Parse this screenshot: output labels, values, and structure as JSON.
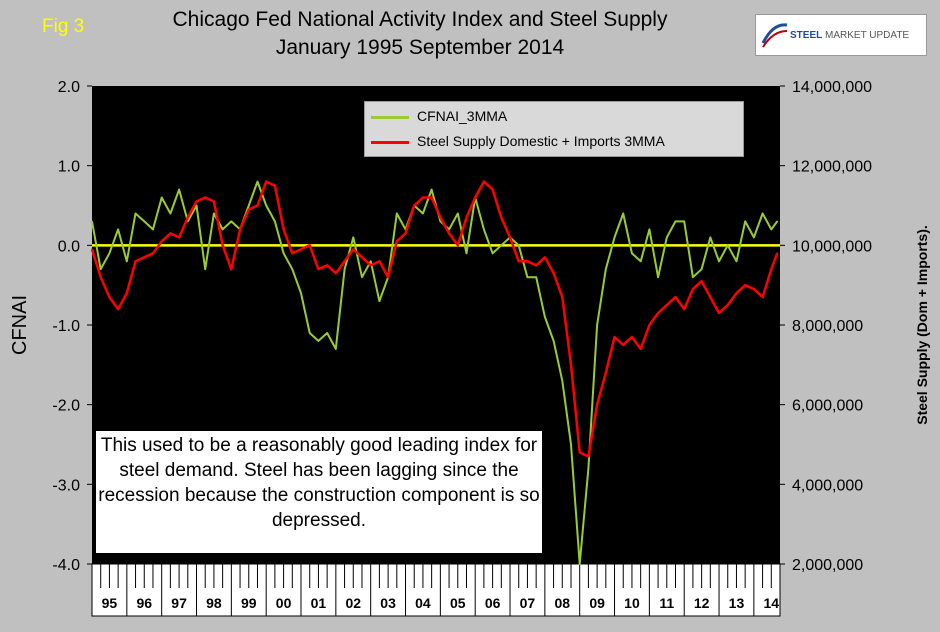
{
  "header": {
    "fig_label": "Fig 3",
    "title_line1": "Chicago Fed National Activity Index and Steel Supply",
    "title_line2": "January 1995 September 2014",
    "logo_brand": "STEEL",
    "logo_rest": " MARKET UPDATE"
  },
  "note": "This used to be a reasonably good leading index for steel demand. Steel has been lagging since the recession because the construction component is so depressed.",
  "colors": {
    "plot_bg": "#000000",
    "cfnai": "#99cc33",
    "steel": "#ff0000",
    "zero_line": "#ffff00"
  },
  "chart_data": {
    "type": "line",
    "title": "Chicago Fed National Activity Index and Steel Supply January 1995 September 2014",
    "ylabel": "CFNAI",
    "y2label": "Steel Supply (Dom + Imports).",
    "ylim": [
      -4.0,
      2.0
    ],
    "y2lim": [
      2000000,
      14000000
    ],
    "yticks": [
      "2.0",
      "1.0",
      "0.0",
      "-1.0",
      "-2.0",
      "-3.0",
      "-4.0"
    ],
    "yticks_values": [
      2.0,
      1.0,
      0.0,
      -1.0,
      -2.0,
      -3.0,
      -4.0
    ],
    "y2ticks": [
      "14,000,000",
      "12,000,000",
      "10,000,000",
      "8,000,000",
      "6,000,000",
      "4,000,000",
      "2,000,000"
    ],
    "y2ticks_values": [
      14000000,
      12000000,
      10000000,
      8000000,
      6000000,
      4000000,
      2000000
    ],
    "xticks": [
      "95",
      "96",
      "97",
      "98",
      "99",
      "00",
      "01",
      "02",
      "03",
      "04",
      "05",
      "06",
      "07",
      "08",
      "09",
      "10",
      "11",
      "12",
      "13",
      "14"
    ],
    "xlim": [
      1995.0,
      2014.75
    ],
    "grid": false,
    "legend_position": "top-center",
    "reference_line": 0.0,
    "series": [
      {
        "name": "CFNAI_3MMA",
        "axis": "left",
        "x": [
          1995.0,
          1995.25,
          1995.5,
          1995.75,
          1996.0,
          1996.25,
          1996.5,
          1996.75,
          1997.0,
          1997.25,
          1997.5,
          1997.75,
          1998.0,
          1998.25,
          1998.5,
          1998.75,
          1999.0,
          1999.25,
          1999.5,
          1999.75,
          2000.0,
          2000.25,
          2000.5,
          2000.75,
          2001.0,
          2001.25,
          2001.5,
          2001.75,
          2002.0,
          2002.25,
          2002.5,
          2002.75,
          2003.0,
          2003.25,
          2003.5,
          2003.75,
          2004.0,
          2004.25,
          2004.5,
          2004.75,
          2005.0,
          2005.25,
          2005.5,
          2005.75,
          2006.0,
          2006.25,
          2006.5,
          2006.75,
          2007.0,
          2007.25,
          2007.5,
          2007.75,
          2008.0,
          2008.25,
          2008.5,
          2008.75,
          2009.0,
          2009.25,
          2009.5,
          2009.75,
          2010.0,
          2010.25,
          2010.5,
          2010.75,
          2011.0,
          2011.25,
          2011.5,
          2011.75,
          2012.0,
          2012.25,
          2012.5,
          2012.75,
          2013.0,
          2013.25,
          2013.5,
          2013.75,
          2014.0,
          2014.25,
          2014.5,
          2014.67
        ],
        "values": [
          0.3,
          -0.3,
          -0.1,
          0.2,
          -0.2,
          0.4,
          0.3,
          0.2,
          0.6,
          0.4,
          0.7,
          0.3,
          0.5,
          -0.3,
          0.4,
          0.2,
          0.3,
          0.2,
          0.5,
          0.8,
          0.5,
          0.3,
          -0.1,
          -0.3,
          -0.6,
          -1.1,
          -1.2,
          -1.1,
          -1.3,
          -0.3,
          0.1,
          -0.4,
          -0.2,
          -0.7,
          -0.4,
          0.4,
          0.2,
          0.5,
          0.4,
          0.7,
          0.3,
          0.2,
          0.4,
          -0.1,
          0.6,
          0.2,
          -0.1,
          0.0,
          0.1,
          0.0,
          -0.4,
          -0.4,
          -0.9,
          -1.2,
          -1.7,
          -2.5,
          -4.0,
          -2.8,
          -1.0,
          -0.3,
          0.1,
          0.4,
          -0.1,
          -0.2,
          0.2,
          -0.4,
          0.1,
          0.3,
          0.3,
          -0.4,
          -0.3,
          0.1,
          -0.2,
          0.0,
          -0.2,
          0.3,
          0.1,
          0.4,
          0.2,
          0.3
        ]
      },
      {
        "name": "Steel Supply Domestic + Imports 3MMA",
        "axis": "right",
        "x": [
          1995.0,
          1995.25,
          1995.5,
          1995.75,
          1996.0,
          1996.25,
          1996.5,
          1996.75,
          1997.0,
          1997.25,
          1997.5,
          1997.75,
          1998.0,
          1998.25,
          1998.5,
          1998.75,
          1999.0,
          1999.25,
          1999.5,
          1999.75,
          2000.0,
          2000.25,
          2000.5,
          2000.75,
          2001.0,
          2001.25,
          2001.5,
          2001.75,
          2002.0,
          2002.25,
          2002.5,
          2002.75,
          2003.0,
          2003.25,
          2003.5,
          2003.75,
          2004.0,
          2004.25,
          2004.5,
          2004.75,
          2005.0,
          2005.25,
          2005.5,
          2005.75,
          2006.0,
          2006.25,
          2006.5,
          2006.75,
          2007.0,
          2007.25,
          2007.5,
          2007.75,
          2008.0,
          2008.25,
          2008.5,
          2008.75,
          2009.0,
          2009.25,
          2009.5,
          2009.75,
          2010.0,
          2010.25,
          2010.5,
          2010.75,
          2011.0,
          2011.25,
          2011.5,
          2011.75,
          2012.0,
          2012.25,
          2012.5,
          2012.75,
          2013.0,
          2013.25,
          2013.5,
          2013.75,
          2014.0,
          2014.25,
          2014.5,
          2014.67
        ],
        "values": [
          9900000,
          9200000,
          8700000,
          8400000,
          8800000,
          9600000,
          9700000,
          9800000,
          10100000,
          10300000,
          10200000,
          10700000,
          11100000,
          11200000,
          11100000,
          10000000,
          9400000,
          10400000,
          10900000,
          11000000,
          11600000,
          11500000,
          10400000,
          9800000,
          9900000,
          10000000,
          9400000,
          9500000,
          9300000,
          9600000,
          9900000,
          9700000,
          9500000,
          9600000,
          9200000,
          10100000,
          10300000,
          11000000,
          11200000,
          11200000,
          10700000,
          10300000,
          10000000,
          10700000,
          11200000,
          11600000,
          11400000,
          10700000,
          10200000,
          9600000,
          9600000,
          9500000,
          9700000,
          9300000,
          8700000,
          7000000,
          4800000,
          4700000,
          6000000,
          6800000,
          7700000,
          7500000,
          7700000,
          7400000,
          8000000,
          8300000,
          8500000,
          8700000,
          8400000,
          8900000,
          9100000,
          8700000,
          8300000,
          8500000,
          8800000,
          9000000,
          8900000,
          8700000,
          9400000,
          9800000
        ]
      }
    ]
  }
}
